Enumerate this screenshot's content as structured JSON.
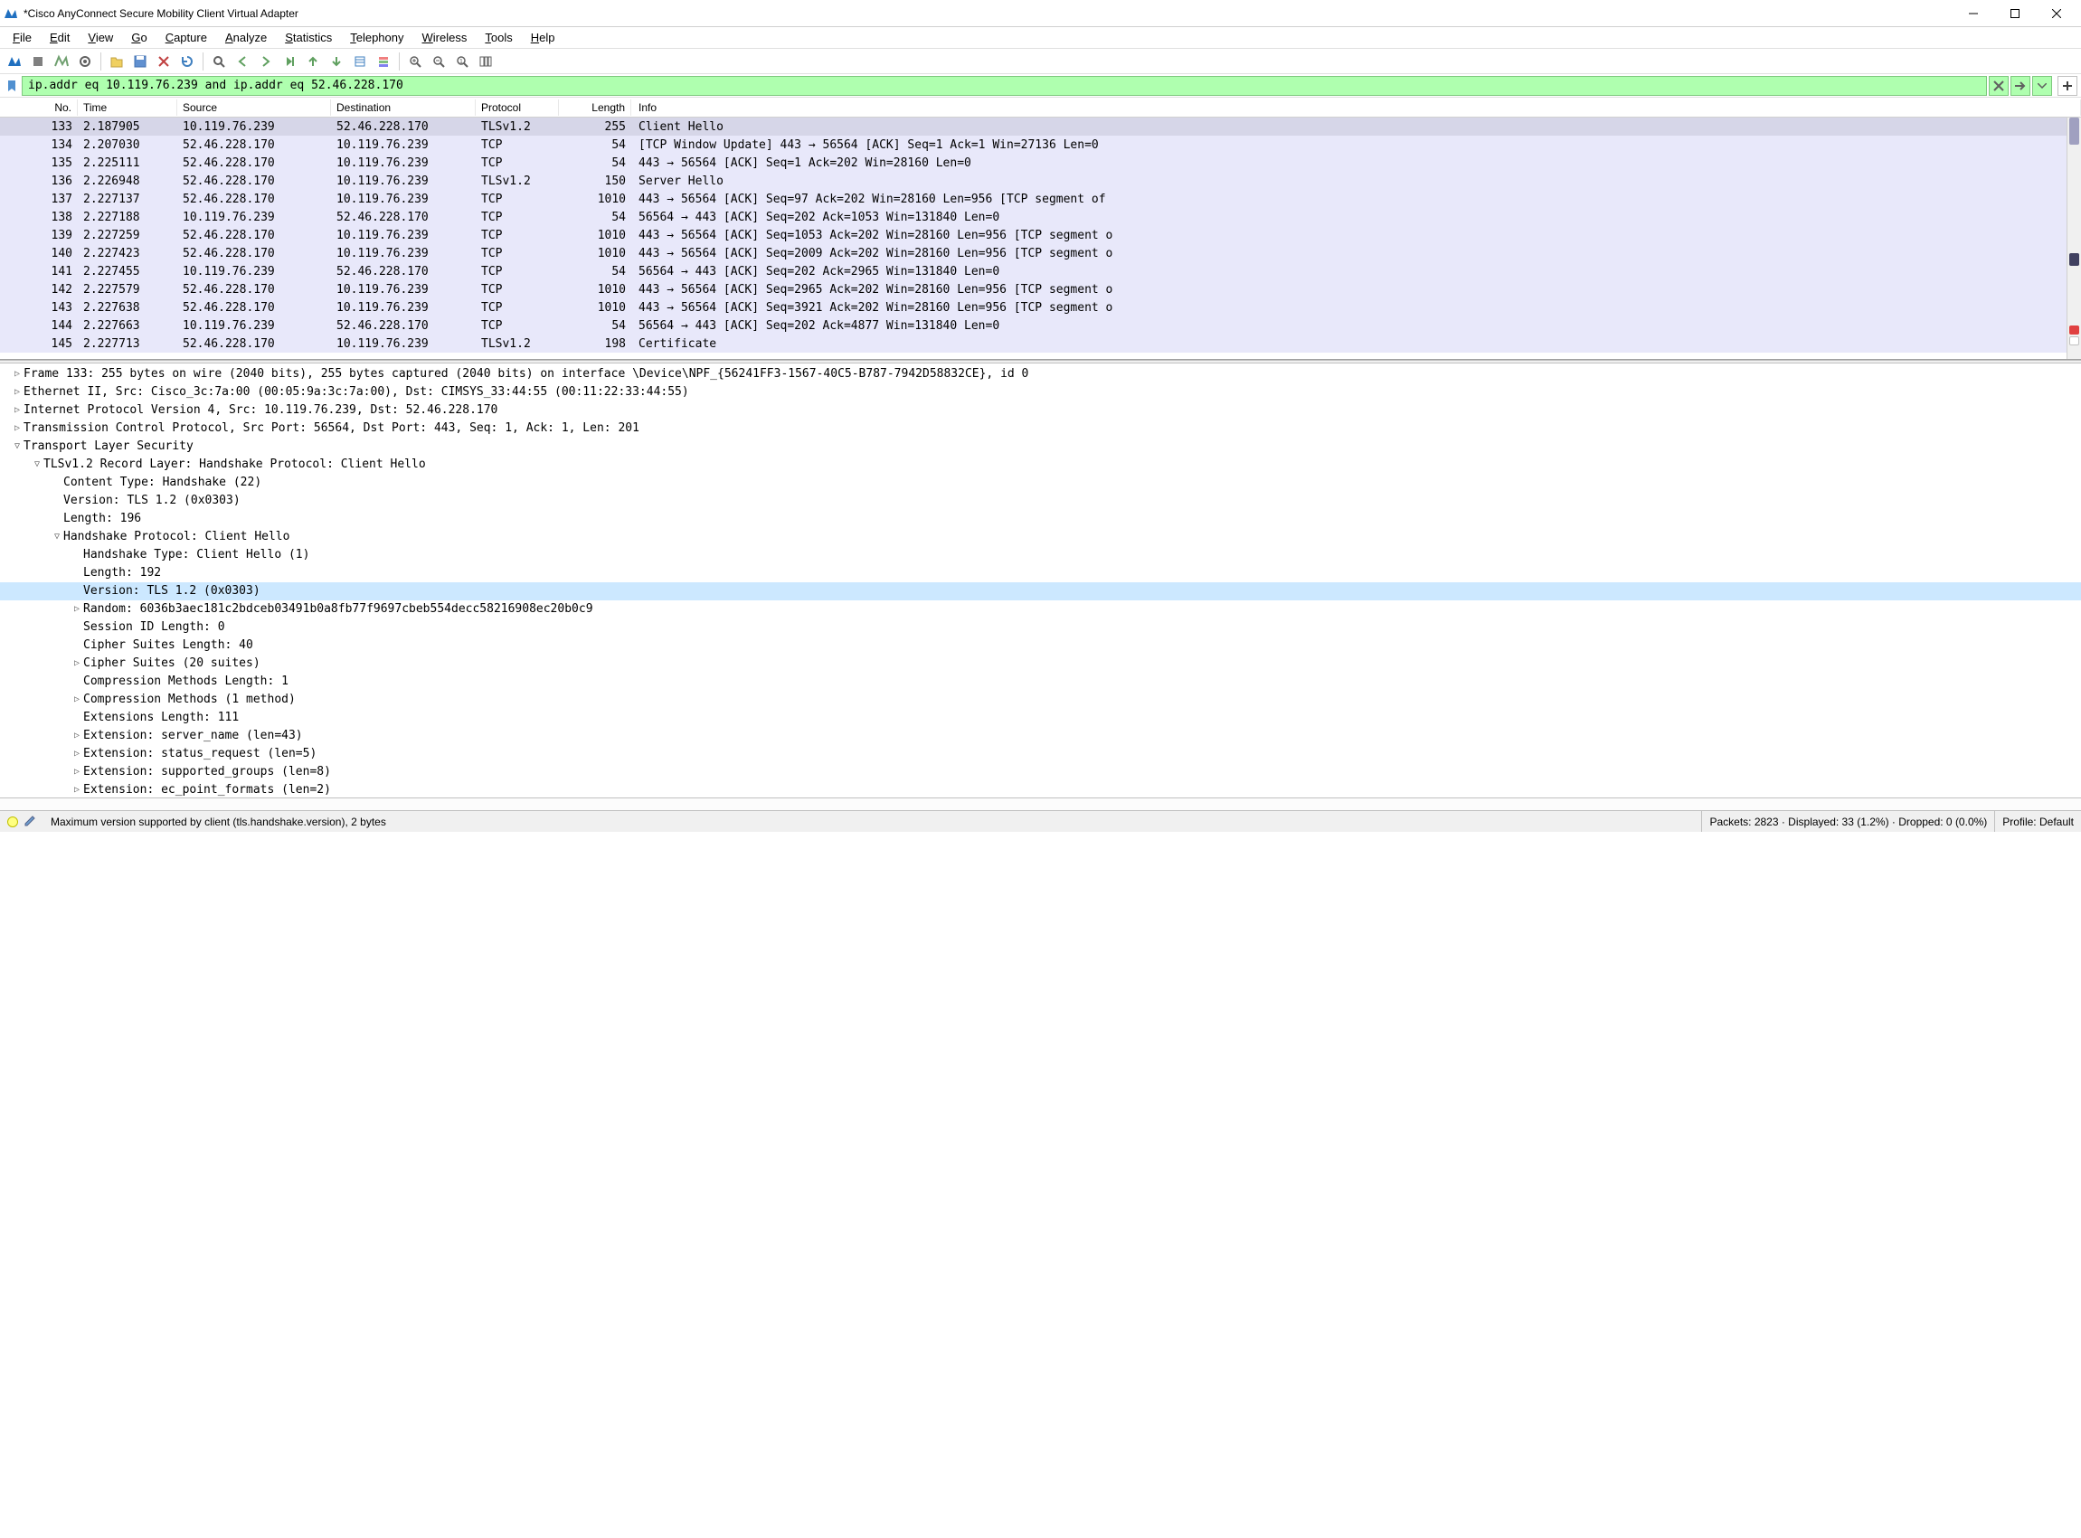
{
  "window": {
    "title": "*Cisco AnyConnect Secure Mobility Client Virtual Adapter"
  },
  "menu": {
    "items": [
      "File",
      "Edit",
      "View",
      "Go",
      "Capture",
      "Analyze",
      "Statistics",
      "Telephony",
      "Wireless",
      "Tools",
      "Help"
    ],
    "accel": [
      0,
      0,
      0,
      0,
      0,
      0,
      0,
      0,
      0,
      0,
      0
    ]
  },
  "filter": {
    "value": "ip.addr eq 10.119.76.239 and ip.addr eq 52.46.228.170",
    "background": "#afffaf"
  },
  "columns": [
    "No.",
    "Time",
    "Source",
    "Destination",
    "Protocol",
    "Length",
    "Info"
  ],
  "packets": [
    {
      "no": "133",
      "time": "2.187905",
      "src": "10.119.76.239",
      "dst": "52.46.228.170",
      "proto": "TLSv1.2",
      "len": "255",
      "info": "Client Hello",
      "selected": true
    },
    {
      "no": "134",
      "time": "2.207030",
      "src": "52.46.228.170",
      "dst": "10.119.76.239",
      "proto": "TCP",
      "len": "54",
      "info": "[TCP Window Update] 443 → 56564 [ACK] Seq=1 Ack=1 Win=27136 Len=0"
    },
    {
      "no": "135",
      "time": "2.225111",
      "src": "52.46.228.170",
      "dst": "10.119.76.239",
      "proto": "TCP",
      "len": "54",
      "info": "443 → 56564 [ACK] Seq=1 Ack=202 Win=28160 Len=0"
    },
    {
      "no": "136",
      "time": "2.226948",
      "src": "52.46.228.170",
      "dst": "10.119.76.239",
      "proto": "TLSv1.2",
      "len": "150",
      "info": "Server Hello"
    },
    {
      "no": "137",
      "time": "2.227137",
      "src": "52.46.228.170",
      "dst": "10.119.76.239",
      "proto": "TCP",
      "len": "1010",
      "info": "443 → 56564 [ACK] Seq=97 Ack=202 Win=28160 Len=956 [TCP segment of"
    },
    {
      "no": "138",
      "time": "2.227188",
      "src": "10.119.76.239",
      "dst": "52.46.228.170",
      "proto": "TCP",
      "len": "54",
      "info": "56564 → 443 [ACK] Seq=202 Ack=1053 Win=131840 Len=0"
    },
    {
      "no": "139",
      "time": "2.227259",
      "src": "52.46.228.170",
      "dst": "10.119.76.239",
      "proto": "TCP",
      "len": "1010",
      "info": "443 → 56564 [ACK] Seq=1053 Ack=202 Win=28160 Len=956 [TCP segment o"
    },
    {
      "no": "140",
      "time": "2.227423",
      "src": "52.46.228.170",
      "dst": "10.119.76.239",
      "proto": "TCP",
      "len": "1010",
      "info": "443 → 56564 [ACK] Seq=2009 Ack=202 Win=28160 Len=956 [TCP segment o"
    },
    {
      "no": "141",
      "time": "2.227455",
      "src": "10.119.76.239",
      "dst": "52.46.228.170",
      "proto": "TCP",
      "len": "54",
      "info": "56564 → 443 [ACK] Seq=202 Ack=2965 Win=131840 Len=0"
    },
    {
      "no": "142",
      "time": "2.227579",
      "src": "52.46.228.170",
      "dst": "10.119.76.239",
      "proto": "TCP",
      "len": "1010",
      "info": "443 → 56564 [ACK] Seq=2965 Ack=202 Win=28160 Len=956 [TCP segment o"
    },
    {
      "no": "143",
      "time": "2.227638",
      "src": "52.46.228.170",
      "dst": "10.119.76.239",
      "proto": "TCP",
      "len": "1010",
      "info": "443 → 56564 [ACK] Seq=3921 Ack=202 Win=28160 Len=956 [TCP segment o"
    },
    {
      "no": "144",
      "time": "2.227663",
      "src": "10.119.76.239",
      "dst": "52.46.228.170",
      "proto": "TCP",
      "len": "54",
      "info": "56564 → 443 [ACK] Seq=202 Ack=4877 Win=131840 Len=0"
    },
    {
      "no": "145",
      "time": "2.227713",
      "src": "52.46.228.170",
      "dst": "10.119.76.239",
      "proto": "TLSv1.2",
      "len": "198",
      "info": "Certificate"
    }
  ],
  "tree": [
    {
      "lvl": 0,
      "tog": ">",
      "txt": "Frame 133: 255 bytes on wire (2040 bits), 255 bytes captured (2040 bits) on interface \\Device\\NPF_{56241FF3-1567-40C5-B787-7942D58832CE}, id 0"
    },
    {
      "lvl": 0,
      "tog": ">",
      "txt": "Ethernet II, Src: Cisco_3c:7a:00 (00:05:9a:3c:7a:00), Dst: CIMSYS_33:44:55 (00:11:22:33:44:55)"
    },
    {
      "lvl": 0,
      "tog": ">",
      "txt": "Internet Protocol Version 4, Src: 10.119.76.239, Dst: 52.46.228.170"
    },
    {
      "lvl": 0,
      "tog": ">",
      "txt": "Transmission Control Protocol, Src Port: 56564, Dst Port: 443, Seq: 1, Ack: 1, Len: 201"
    },
    {
      "lvl": 0,
      "tog": "v",
      "txt": "Transport Layer Security"
    },
    {
      "lvl": 1,
      "tog": "v",
      "txt": "TLSv1.2 Record Layer: Handshake Protocol: Client Hello"
    },
    {
      "lvl": 2,
      "tog": "",
      "txt": "Content Type: Handshake (22)"
    },
    {
      "lvl": 2,
      "tog": "",
      "txt": "Version: TLS 1.2 (0x0303)"
    },
    {
      "lvl": 2,
      "tog": "",
      "txt": "Length: 196"
    },
    {
      "lvl": 2,
      "tog": "v",
      "txt": "Handshake Protocol: Client Hello"
    },
    {
      "lvl": 3,
      "tog": "",
      "txt": "Handshake Type: Client Hello (1)"
    },
    {
      "lvl": 3,
      "tog": "",
      "txt": "Length: 192"
    },
    {
      "lvl": 3,
      "tog": "",
      "txt": "Version: TLS 1.2 (0x0303)",
      "hl": true
    },
    {
      "lvl": 3,
      "tog": ">",
      "txt": "Random: 6036b3aec181c2bdceb03491b0a8fb77f9697cbeb554decc58216908ec20b0c9"
    },
    {
      "lvl": 3,
      "tog": "",
      "txt": "Session ID Length: 0"
    },
    {
      "lvl": 3,
      "tog": "",
      "txt": "Cipher Suites Length: 40"
    },
    {
      "lvl": 3,
      "tog": ">",
      "txt": "Cipher Suites (20 suites)"
    },
    {
      "lvl": 3,
      "tog": "",
      "txt": "Compression Methods Length: 1"
    },
    {
      "lvl": 3,
      "tog": ">",
      "txt": "Compression Methods (1 method)"
    },
    {
      "lvl": 3,
      "tog": "",
      "txt": "Extensions Length: 111"
    },
    {
      "lvl": 3,
      "tog": ">",
      "txt": "Extension: server_name (len=43)"
    },
    {
      "lvl": 3,
      "tog": ">",
      "txt": "Extension: status_request (len=5)"
    },
    {
      "lvl": 3,
      "tog": ">",
      "txt": "Extension: supported_groups (len=8)"
    },
    {
      "lvl": 3,
      "tog": ">",
      "txt": "Extension: ec_point_formats (len=2)"
    }
  ],
  "status": {
    "field": "Maximum version supported by client (tls.handshake.version), 2 bytes",
    "packets": "Packets: 2823 · Displayed: 33 (1.2%) · Dropped: 0 (0.0%)",
    "profile": "Profile: Default"
  },
  "colors": {
    "row_bg": "#e8e8fa",
    "row_selected": "#d6d6e8",
    "filter_valid": "#afffaf",
    "highlight": "#cce8ff"
  }
}
